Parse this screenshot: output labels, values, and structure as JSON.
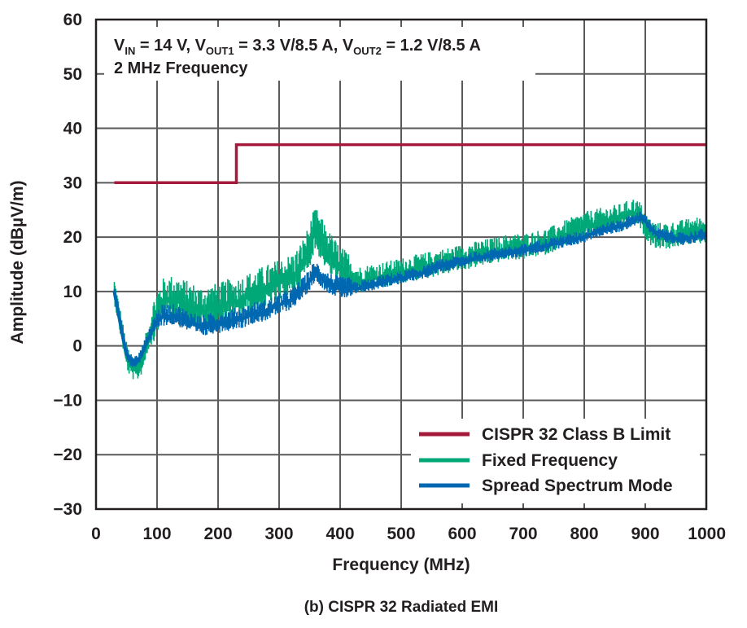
{
  "chart_data": {
    "type": "line",
    "title": "",
    "caption": "(b) CISPR 32 Radiated EMI",
    "xlabel": "Frequency (MHz)",
    "ylabel": "Amplitude (dBµV/m)",
    "xlim": [
      0,
      1000
    ],
    "ylim": [
      -30,
      60
    ],
    "xticks": [
      0,
      100,
      200,
      300,
      400,
      500,
      600,
      700,
      800,
      900,
      1000
    ],
    "yticks": [
      -30,
      -20,
      -10,
      0,
      10,
      20,
      30,
      40,
      50,
      60
    ],
    "grid": true,
    "legend_position": "bottom-right",
    "annotation": {
      "line1": {
        "vin_sym": "V",
        "vin_sub": "IN",
        "vin_val": " = 14 V, ",
        "vout1_sym": "V",
        "vout1_sub": "OUT1",
        "vout1_val": " = 3.3 V/8.5 A, ",
        "vout2_sym": "V",
        "vout2_sub": "OUT2",
        "vout2_val": " = 1.2 V/8.5 A"
      },
      "line2": "2 MHz Frequency"
    },
    "series": [
      {
        "name": "CISPR 32 Class B Limit",
        "color": "#a5193a",
        "x": [
          30,
          230,
          230,
          1000
        ],
        "y": [
          30,
          30,
          37,
          37
        ]
      },
      {
        "name": "Fixed Frequency",
        "color": "#00a878",
        "x": [
          30,
          35,
          40,
          45,
          50,
          55,
          60,
          65,
          70,
          75,
          80,
          90,
          100,
          110,
          120,
          130,
          140,
          150,
          160,
          170,
          180,
          190,
          200,
          210,
          220,
          230,
          240,
          250,
          260,
          270,
          280,
          290,
          300,
          310,
          320,
          330,
          340,
          350,
          355,
          360,
          365,
          370,
          375,
          380,
          390,
          400,
          410,
          420,
          430,
          440,
          450,
          460,
          480,
          500,
          520,
          540,
          560,
          580,
          600,
          620,
          640,
          660,
          680,
          700,
          720,
          740,
          760,
          780,
          800,
          820,
          840,
          860,
          870,
          880,
          890,
          900,
          910,
          920,
          940,
          960,
          980,
          1000
        ],
        "y": [
          10,
          7,
          4,
          1,
          -2,
          -3.5,
          -4,
          -4.5,
          -4,
          -3,
          -1,
          3,
          6,
          8,
          8.5,
          8.5,
          8,
          7.5,
          7,
          6.5,
          6.5,
          7,
          7,
          7.5,
          8,
          8,
          8.5,
          9,
          9.5,
          10,
          10.5,
          11,
          11.5,
          12,
          12.5,
          13.5,
          15.5,
          18,
          20,
          21,
          20,
          19,
          18,
          17,
          15.5,
          14,
          13,
          12.5,
          12,
          12,
          12.5,
          12.5,
          13,
          13.5,
          14,
          14.5,
          15,
          15.5,
          16,
          16.5,
          17,
          17.5,
          18,
          18,
          18.5,
          19,
          20,
          21,
          22,
          22.5,
          23,
          23.5,
          24,
          24.5,
          24,
          22,
          20.5,
          20,
          20,
          20.5,
          21,
          21
        ]
      },
      {
        "name": "Spread Spectrum Mode",
        "color": "#0067b1",
        "x": [
          30,
          35,
          40,
          45,
          50,
          55,
          60,
          65,
          70,
          75,
          80,
          90,
          100,
          110,
          120,
          130,
          140,
          150,
          160,
          170,
          180,
          190,
          200,
          210,
          220,
          230,
          240,
          250,
          260,
          270,
          280,
          290,
          300,
          310,
          320,
          330,
          340,
          350,
          355,
          360,
          365,
          370,
          375,
          380,
          390,
          400,
          410,
          420,
          430,
          440,
          450,
          460,
          480,
          500,
          520,
          540,
          560,
          580,
          600,
          620,
          640,
          660,
          680,
          700,
          720,
          740,
          760,
          780,
          800,
          820,
          840,
          860,
          870,
          880,
          890,
          900,
          910,
          920,
          940,
          960,
          980,
          1000
        ],
        "y": [
          10,
          7,
          4,
          1,
          -1.5,
          -2.5,
          -3,
          -3,
          -2.5,
          -1.5,
          0,
          2.5,
          4.5,
          5.5,
          5.5,
          5.5,
          5,
          4.5,
          4,
          3.5,
          3.5,
          4,
          4,
          4.5,
          4.5,
          5,
          5,
          5.5,
          6,
          6,
          6.5,
          7,
          7.5,
          8,
          8.5,
          9.5,
          10.5,
          12,
          13,
          13.5,
          13,
          12.5,
          12,
          11.5,
          11,
          10.5,
          10.5,
          10.5,
          10.5,
          11,
          11,
          11.5,
          12,
          12.5,
          13,
          13.5,
          14.5,
          15,
          15.5,
          16,
          16.5,
          17,
          17,
          17.5,
          18,
          18.5,
          19,
          19.5,
          20,
          21,
          21.5,
          22,
          22.5,
          23,
          23.5,
          23,
          21.5,
          20.5,
          20,
          19.5,
          20,
          20.5
        ]
      }
    ]
  }
}
